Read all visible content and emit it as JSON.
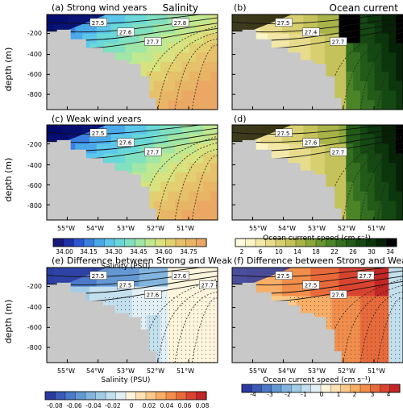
{
  "figure": {
    "panels": {
      "a": {
        "title": "(a) Strong wind years",
        "corner_label": "Salinity",
        "contour_labels": [
          "27.5",
          "27.6",
          "27.7",
          "27.8"
        ]
      },
      "b": {
        "title": "(b)",
        "corner_label": "Ocean current",
        "contour_labels": [
          "27.5",
          "27.4",
          "27.7"
        ]
      },
      "c": {
        "title": "(c) Weak wind years",
        "corner_label": "",
        "contour_labels": [
          "27.5",
          "27.6",
          "27.7"
        ]
      },
      "d": {
        "title": "(d)",
        "corner_label": "",
        "contour_labels": [
          "27.5",
          "27.6",
          "27.7"
        ]
      },
      "e": {
        "title": "(e) Difference between Strong and Weak",
        "corner_label": "",
        "contour_labels": [
          "27.5",
          "27.5",
          "27.6",
          "27.6",
          "27.7"
        ]
      },
      "f": {
        "title": "(f) Difference between Strong and Weak",
        "corner_label": "",
        "contour_labels": [
          "27.5",
          "27.5",
          "27.6",
          "27.7"
        ]
      }
    },
    "axis": {
      "ylabel": "depth (m)",
      "yticks": [
        "-200",
        "-400",
        "-600",
        "-800"
      ],
      "xticks": [
        "55°W",
        "54°W",
        "53°W",
        "52°W",
        "51°W"
      ]
    },
    "colorbars": {
      "salinity": {
        "label": "Salinity (PSU)",
        "ticks": [
          "34.00",
          "34.15",
          "34.30",
          "34.45",
          "34.60",
          "34.75"
        ],
        "colors": [
          "#1a1a7a",
          "#2030a8",
          "#2a56d0",
          "#3a80e0",
          "#4aa8e8",
          "#5cc6ea",
          "#6ad8d8",
          "#80e0c0",
          "#a0e6a6",
          "#c0e890",
          "#d8e27e",
          "#e2d070",
          "#e6c06a",
          "#e8b466",
          "#eaa864"
        ]
      },
      "current": {
        "label": "Ocean current speed (cm s⁻¹)",
        "ticks": [
          "2",
          "6",
          "10",
          "14",
          "18",
          "22",
          "26",
          "30",
          "34"
        ],
        "colors": [
          "#fffde0",
          "#fbf4c4",
          "#f3e8a8",
          "#e8dc8c",
          "#d8d070",
          "#c4c25a",
          "#a8b448",
          "#8aa63c",
          "#6a9632",
          "#4c8428",
          "#347020",
          "#225a18",
          "#154812",
          "#0c360c",
          "#062206",
          "#000000"
        ]
      },
      "salinity_diff": {
        "label": "Salinity (PSU)",
        "ticks": [
          "-0.08",
          "-0.06",
          "-0.04",
          "-0.02",
          "0",
          "0.02",
          "0.04",
          "0.06",
          "0.08"
        ],
        "colors": [
          "#2a3aa0",
          "#3a5ab8",
          "#4c7ac8",
          "#6498d4",
          "#82b4de",
          "#a2cce6",
          "#c2e0ee",
          "#e2f0f6",
          "#fff4dc",
          "#fde2b4",
          "#fbca8a",
          "#f8ae66",
          "#f28e4c",
          "#e86a3a",
          "#d84430",
          "#c42626"
        ]
      },
      "current_diff": {
        "label": "Ocean current speed (cm s⁻¹)",
        "ticks": [
          "-4",
          "-3",
          "-2",
          "-1",
          "0",
          "1",
          "2",
          "3",
          "4"
        ],
        "colors": [
          "#2a3aa0",
          "#3a5ab8",
          "#4c7ac8",
          "#6498d4",
          "#82b4de",
          "#a2cce6",
          "#c2e0ee",
          "#e2f0f6",
          "#fff4dc",
          "#fde2b4",
          "#fbca8a",
          "#f8ae66",
          "#f28e4c",
          "#e86a3a",
          "#d84430",
          "#c42626"
        ]
      }
    }
  },
  "chart_data": [
    {
      "type": "heatmap",
      "panel": "a",
      "title": "(a) Strong wind years",
      "variable": "Salinity (PSU)",
      "ylabel": "depth (m)",
      "xlim": [
        "55.6°W",
        "50.6°W"
      ],
      "ylim": [
        -1000,
        0
      ],
      "isopycnals": [
        27.5,
        27.6,
        27.7,
        27.8
      ]
    },
    {
      "type": "heatmap",
      "panel": "b",
      "title": "(b)",
      "variable": "Ocean current speed (cm s⁻¹)",
      "ylabel": "",
      "isopycnals": [
        27.4,
        27.5,
        27.7
      ]
    },
    {
      "type": "heatmap",
      "panel": "c",
      "title": "(c) Weak wind years",
      "variable": "Salinity (PSU)",
      "ylabel": "depth (m)",
      "isopycnals": [
        27.5,
        27.6,
        27.7
      ]
    },
    {
      "type": "heatmap",
      "panel": "d",
      "title": "(d)",
      "variable": "Ocean current speed (cm s⁻¹)",
      "isopycnals": [
        27.5,
        27.6,
        27.7
      ]
    },
    {
      "type": "heatmap",
      "panel": "e",
      "title": "(e) Difference between Strong and Weak",
      "variable": "Salinity (PSU)",
      "ylabel": "depth (m)",
      "isopycnals": [
        27.5,
        27.6,
        27.7
      ]
    },
    {
      "type": "heatmap",
      "panel": "f",
      "title": "(f) Difference between Strong and Weak",
      "variable": "Ocean current speed (cm s⁻¹)",
      "isopycnals": [
        27.5,
        27.6,
        27.7
      ]
    }
  ]
}
